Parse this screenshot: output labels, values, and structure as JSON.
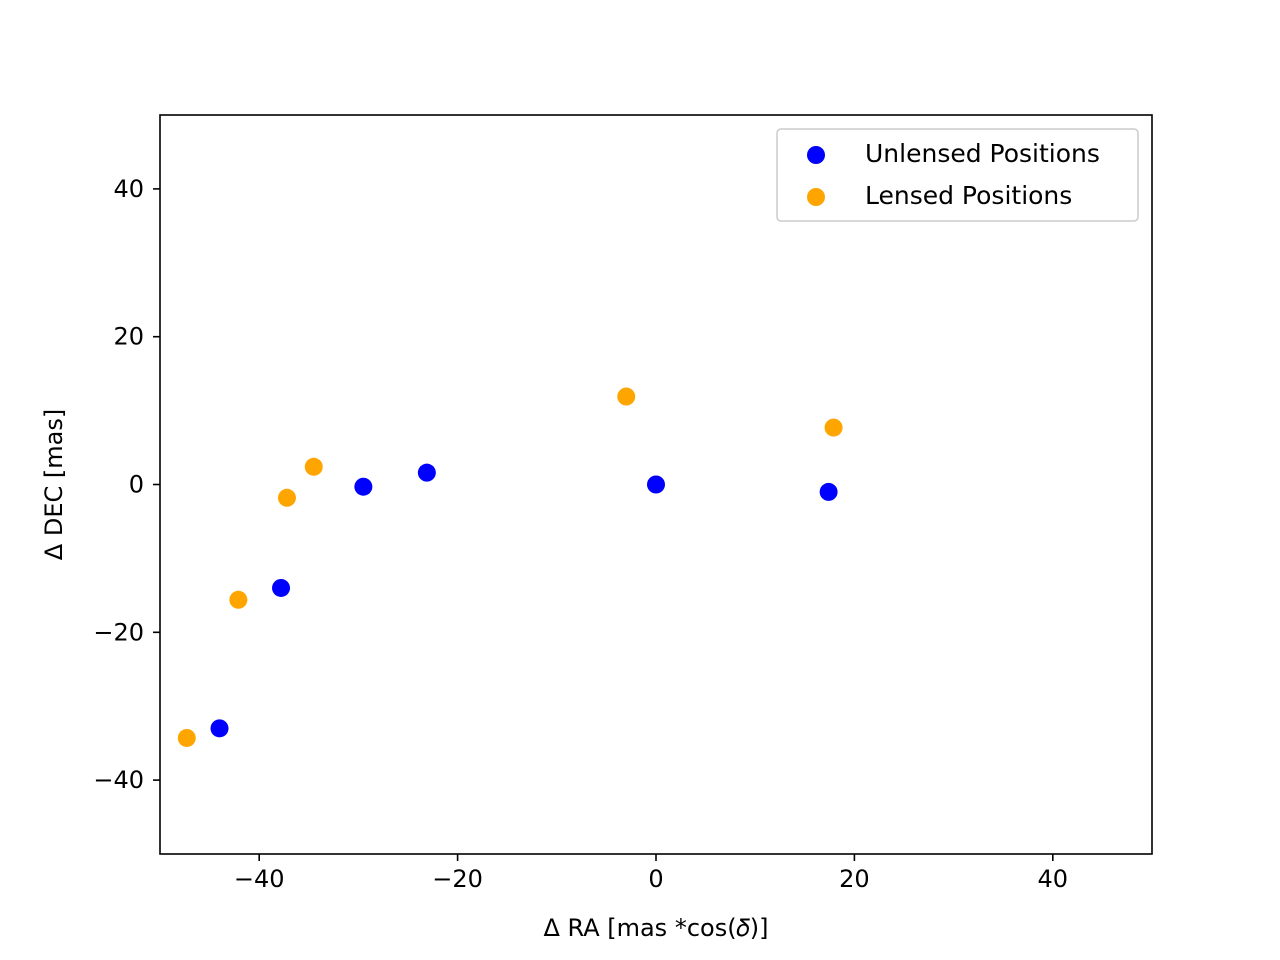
{
  "chart_data": {
    "type": "scatter",
    "xlabel": "Δ RA [mas *cos(𝛿)]",
    "ylabel": "Δ DEC [mas]",
    "xlim": [
      -50,
      50
    ],
    "ylim": [
      -50,
      50
    ],
    "xticks": [
      -40,
      -20,
      0,
      20,
      40
    ],
    "yticks": [
      -40,
      -20,
      0,
      20,
      40
    ],
    "xtick_labels": [
      "−40",
      "−20",
      "0",
      "20",
      "40"
    ],
    "ytick_labels": [
      "−40",
      "−20",
      "0",
      "20",
      "40"
    ],
    "grid": false,
    "legend_position": "top-right",
    "series": [
      {
        "name": "Unlensed Positions",
        "color": "#0000ff",
        "points": [
          {
            "x": -44.0,
            "y": -33.0
          },
          {
            "x": -37.8,
            "y": -14.0
          },
          {
            "x": -29.5,
            "y": -0.3
          },
          {
            "x": -23.1,
            "y": 1.6
          },
          {
            "x": 0.0,
            "y": 0.0
          },
          {
            "x": 17.4,
            "y": -1.0
          }
        ]
      },
      {
        "name": "Lensed Positions",
        "color": "#ffa500",
        "points": [
          {
            "x": -47.3,
            "y": -34.3
          },
          {
            "x": -42.1,
            "y": -15.6
          },
          {
            "x": -37.2,
            "y": -1.8
          },
          {
            "x": -34.5,
            "y": 2.4
          },
          {
            "x": -3.0,
            "y": 11.9
          },
          {
            "x": 17.9,
            "y": 7.7
          }
        ]
      }
    ]
  }
}
